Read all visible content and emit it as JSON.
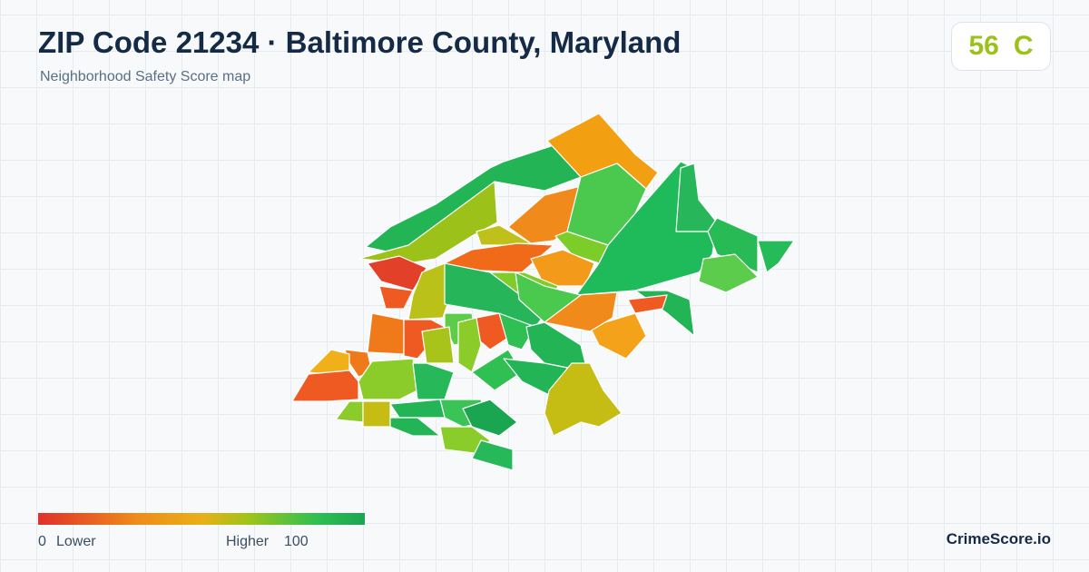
{
  "header": {
    "title": "ZIP Code 21234 · Baltimore County, Maryland",
    "subtitle": "Neighborhood Safety Score map"
  },
  "score": {
    "value": 56,
    "grade": "C"
  },
  "legend": {
    "min": 0,
    "min_label": "Lower",
    "max_label": "Higher",
    "max": 100
  },
  "brand": "CrimeScore.io"
}
